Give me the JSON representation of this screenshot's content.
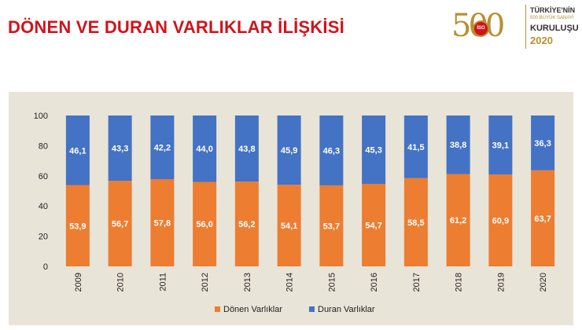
{
  "header": {
    "title": "DÖNEN VE DURAN VARLIKLAR İLİŞKİSİ"
  },
  "logo": {
    "number": "500",
    "badge": "İSO",
    "line1": "TÜRKİYE'NİN",
    "line2": "500 BÜYÜK SANAYİ",
    "line3": "KURULUŞU",
    "year": "2020"
  },
  "colors": {
    "title": "#d1131b",
    "donen": "#ed7d31",
    "duran": "#4472c4",
    "plot_background": "#e8e4d8",
    "logo_gold": "#b8902f"
  },
  "chart_data": {
    "type": "bar",
    "stacked": true,
    "title": "",
    "xlabel": "",
    "ylabel": "",
    "categories": [
      "2009",
      "2010",
      "2011",
      "2012",
      "2013",
      "2014",
      "2015",
      "2016",
      "2017",
      "2018",
      "2019",
      "2020"
    ],
    "series": [
      {
        "name": "Dönen Varlıklar",
        "values": [
          53.9,
          56.7,
          57.8,
          56.0,
          56.2,
          54.1,
          53.7,
          54.7,
          58.5,
          61.2,
          60.9,
          63.7
        ],
        "labels": [
          "53,9",
          "56,7",
          "57,8",
          "56,0",
          "56,2",
          "54,1",
          "53,7",
          "54,7",
          "58,5",
          "61,2",
          "60,9",
          "63,7"
        ]
      },
      {
        "name": "Duran Varlıklar",
        "values": [
          46.1,
          43.3,
          42.2,
          44.0,
          43.8,
          45.9,
          46.3,
          45.3,
          41.5,
          38.8,
          39.1,
          36.3
        ],
        "labels": [
          "46,1",
          "43,3",
          "42,2",
          "44,0",
          "43,8",
          "45,9",
          "46,3",
          "45,3",
          "41,5",
          "38,8",
          "39,1",
          "36,3"
        ]
      }
    ],
    "ylim": [
      0,
      100
    ],
    "yticks": [
      "0",
      "20",
      "40",
      "60",
      "80",
      "100"
    ],
    "grid": false,
    "legend": "bottom"
  }
}
